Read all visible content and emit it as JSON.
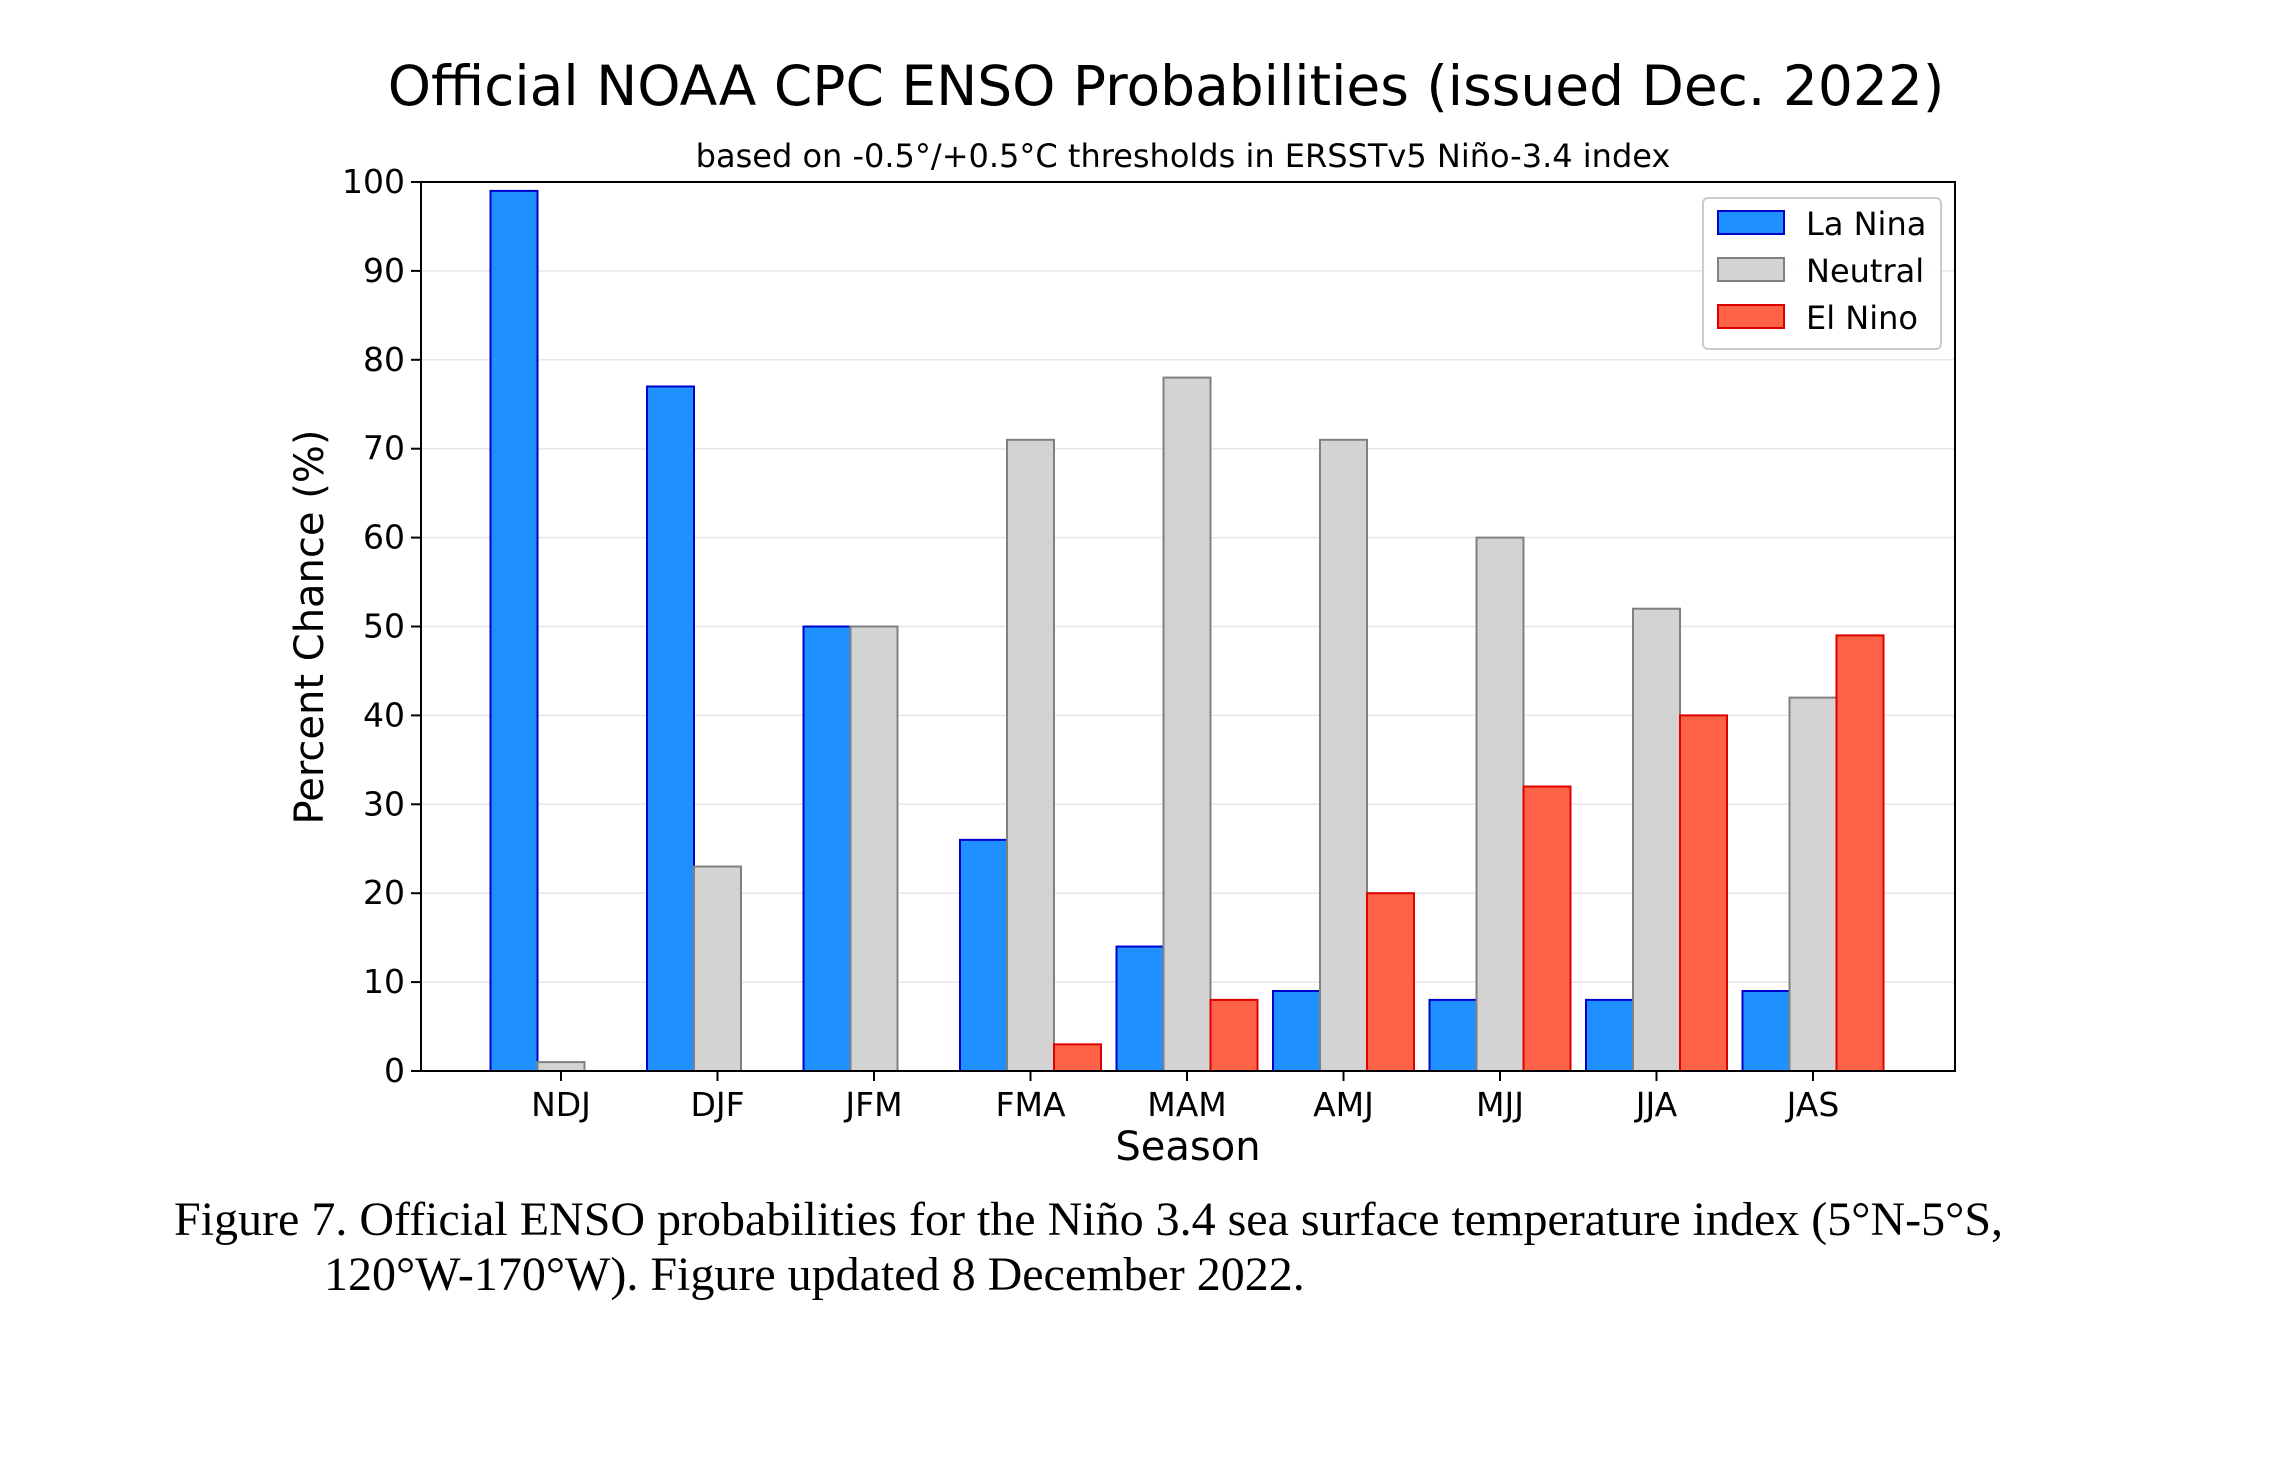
{
  "chart_data": {
    "type": "bar",
    "title": "Official NOAA CPC ENSO Probabilities (issued Dec. 2022)",
    "subtitle": "based on -0.5°/+0.5°C thresholds in ERSSTv5 Niño-3.4 index",
    "xlabel": "Season",
    "ylabel": "Percent Chance (%)",
    "ylim": [
      0,
      100
    ],
    "yticks": [
      0,
      10,
      20,
      30,
      40,
      50,
      60,
      70,
      80,
      90,
      100
    ],
    "grid": true,
    "legend_position": "top-right",
    "categories": [
      "NDJ",
      "DJF",
      "JFM",
      "FMA",
      "MAM",
      "AMJ",
      "MJJ",
      "JJA",
      "JAS"
    ],
    "series": [
      {
        "name": "La Nina",
        "color": "#1e90ff",
        "edge": "#0000cc",
        "values": [
          99,
          77,
          50,
          26,
          14,
          9,
          8,
          8,
          9
        ]
      },
      {
        "name": "Neutral",
        "color": "#d3d3d3",
        "edge": "#808080",
        "values": [
          1,
          23,
          50,
          71,
          78,
          71,
          60,
          52,
          42
        ]
      },
      {
        "name": "El Nino",
        "color": "#ff6347",
        "edge": "#dd0000",
        "values": [
          0,
          0,
          0,
          3,
          8,
          20,
          32,
          40,
          49
        ]
      }
    ]
  },
  "caption": {
    "line1": "Figure 7. Official ENSO probabilities for the Niño 3.4 sea surface temperature index (5°N-5°S,",
    "line2": "120°W-170°W). Figure updated 8 December 2022."
  }
}
